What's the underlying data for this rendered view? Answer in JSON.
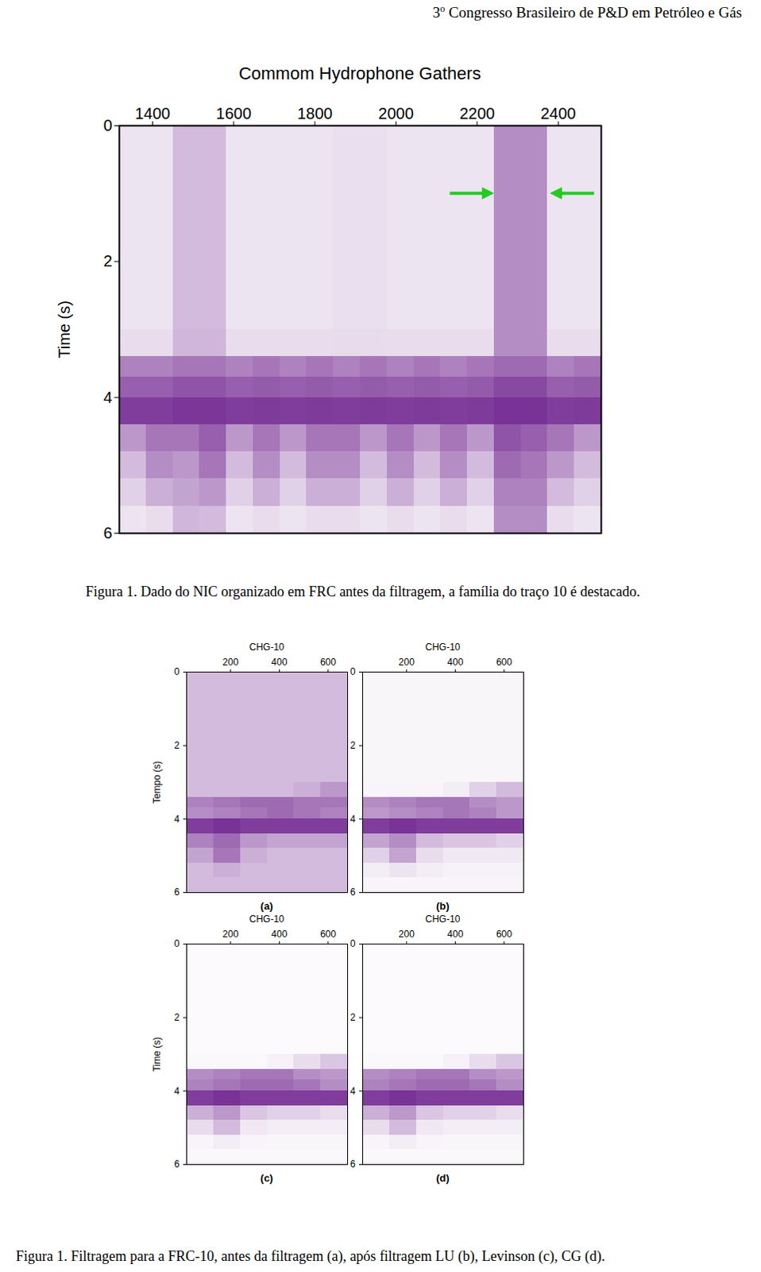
{
  "header": {
    "number": "3",
    "sup": "o",
    "text": " Congresso Brasileiro de P&D em Petróleo e Gás"
  },
  "chart_data": [
    {
      "type": "heatmap",
      "title": "Commom Hydrophone Gathers",
      "ylabel": "Time (s)",
      "xlim": [
        1318,
        2506
      ],
      "xticks": [
        1400,
        1600,
        1800,
        2000,
        2200,
        2400
      ],
      "ylim": [
        0,
        6
      ],
      "yticks": [
        0,
        2,
        4,
        6
      ],
      "zlim": [
        0,
        1
      ],
      "color": "#6a1b8a",
      "x_edges": [
        1318,
        1384,
        1450,
        1516,
        1582,
        1648,
        1714,
        1780,
        1846,
        1912,
        1978,
        2044,
        2110,
        2176,
        2242,
        2308,
        2374,
        2440,
        2506
      ],
      "y_edges": [
        0,
        1,
        2,
        3,
        3.4,
        3.7,
        4.0,
        4.4,
        4.8,
        5.2,
        5.6,
        6
      ],
      "values": [
        [
          0.12,
          0.12,
          0.3,
          0.3,
          0.12,
          0.12,
          0.12,
          0.12,
          0.14,
          0.14,
          0.12,
          0.12,
          0.12,
          0.12,
          0.5,
          0.5,
          0.12,
          0.12
        ],
        [
          0.12,
          0.12,
          0.3,
          0.3,
          0.12,
          0.12,
          0.12,
          0.12,
          0.14,
          0.14,
          0.12,
          0.12,
          0.12,
          0.12,
          0.5,
          0.5,
          0.12,
          0.12
        ],
        [
          0.12,
          0.12,
          0.3,
          0.3,
          0.12,
          0.12,
          0.12,
          0.12,
          0.14,
          0.14,
          0.12,
          0.12,
          0.12,
          0.12,
          0.5,
          0.5,
          0.12,
          0.12
        ],
        [
          0.15,
          0.15,
          0.32,
          0.32,
          0.15,
          0.15,
          0.15,
          0.15,
          0.16,
          0.16,
          0.15,
          0.15,
          0.15,
          0.15,
          0.5,
          0.5,
          0.15,
          0.15
        ],
        [
          0.55,
          0.55,
          0.6,
          0.6,
          0.55,
          0.6,
          0.55,
          0.6,
          0.55,
          0.6,
          0.55,
          0.6,
          0.55,
          0.6,
          0.65,
          0.65,
          0.55,
          0.6
        ],
        [
          0.7,
          0.7,
          0.75,
          0.75,
          0.7,
          0.72,
          0.7,
          0.72,
          0.7,
          0.72,
          0.7,
          0.72,
          0.7,
          0.72,
          0.8,
          0.8,
          0.7,
          0.72
        ],
        [
          0.85,
          0.85,
          0.88,
          0.88,
          0.85,
          0.86,
          0.85,
          0.86,
          0.85,
          0.86,
          0.85,
          0.86,
          0.85,
          0.86,
          0.9,
          0.9,
          0.85,
          0.86
        ],
        [
          0.45,
          0.6,
          0.6,
          0.7,
          0.45,
          0.6,
          0.45,
          0.6,
          0.6,
          0.45,
          0.6,
          0.45,
          0.6,
          0.45,
          0.75,
          0.7,
          0.6,
          0.45
        ],
        [
          0.3,
          0.5,
          0.45,
          0.6,
          0.3,
          0.5,
          0.3,
          0.5,
          0.5,
          0.3,
          0.5,
          0.3,
          0.5,
          0.3,
          0.65,
          0.6,
          0.45,
          0.3
        ],
        [
          0.2,
          0.35,
          0.4,
          0.45,
          0.2,
          0.35,
          0.2,
          0.35,
          0.35,
          0.2,
          0.35,
          0.2,
          0.35,
          0.2,
          0.55,
          0.55,
          0.3,
          0.2
        ],
        [
          0.12,
          0.15,
          0.32,
          0.3,
          0.12,
          0.15,
          0.12,
          0.15,
          0.15,
          0.12,
          0.15,
          0.12,
          0.15,
          0.12,
          0.5,
          0.5,
          0.15,
          0.12
        ]
      ],
      "highlight": {
        "x0": 2247,
        "x1": 2376,
        "y": 1.0,
        "color": "#22cc22"
      }
    },
    {
      "type": "heatmap",
      "title": "CHG-10",
      "ylabel": "Tempo (s)",
      "subtitle": "(a)",
      "xlim": [
        20,
        680
      ],
      "xticks": [
        200,
        400,
        600
      ],
      "ylim": [
        0,
        6
      ],
      "yticks": [
        0,
        2,
        4,
        6
      ],
      "zlim": [
        0,
        1
      ],
      "color": "#6a1b8a",
      "x_edges": [
        20,
        130,
        240,
        350,
        460,
        570,
        680
      ],
      "y_edges": [
        0,
        1,
        2,
        3,
        3.4,
        3.7,
        4.0,
        4.4,
        4.8,
        5.2,
        5.6,
        6
      ],
      "values": [
        [
          0.3,
          0.3,
          0.3,
          0.3,
          0.3,
          0.3
        ],
        [
          0.3,
          0.3,
          0.3,
          0.3,
          0.3,
          0.3
        ],
        [
          0.3,
          0.3,
          0.3,
          0.3,
          0.3,
          0.3
        ],
        [
          0.3,
          0.3,
          0.3,
          0.3,
          0.35,
          0.45
        ],
        [
          0.55,
          0.6,
          0.65,
          0.65,
          0.6,
          0.6
        ],
        [
          0.5,
          0.55,
          0.6,
          0.65,
          0.6,
          0.55
        ],
        [
          0.85,
          0.9,
          0.85,
          0.85,
          0.85,
          0.85
        ],
        [
          0.55,
          0.65,
          0.45,
          0.4,
          0.4,
          0.4
        ],
        [
          0.4,
          0.6,
          0.35,
          0.3,
          0.3,
          0.3
        ],
        [
          0.3,
          0.35,
          0.3,
          0.3,
          0.3,
          0.3
        ],
        [
          0.3,
          0.3,
          0.3,
          0.3,
          0.3,
          0.3
        ]
      ]
    },
    {
      "type": "heatmap",
      "title": "CHG-10",
      "subtitle": "(b)",
      "xlim": [
        20,
        680
      ],
      "xticks": [
        200,
        400,
        600
      ],
      "ylim": [
        0,
        6
      ],
      "yticks": [
        0,
        2,
        4,
        6
      ],
      "zlim": [
        0,
        1
      ],
      "color": "#6a1b8a",
      "x_edges": [
        20,
        130,
        240,
        350,
        460,
        570,
        680
      ],
      "y_edges": [
        0,
        1,
        2,
        3,
        3.4,
        3.7,
        4.0,
        4.4,
        4.8,
        5.2,
        5.6,
        6
      ],
      "values": [
        [
          0.04,
          0.04,
          0.04,
          0.04,
          0.04,
          0.04
        ],
        [
          0.04,
          0.04,
          0.04,
          0.04,
          0.04,
          0.04
        ],
        [
          0.04,
          0.04,
          0.04,
          0.04,
          0.04,
          0.04
        ],
        [
          0.05,
          0.05,
          0.05,
          0.08,
          0.2,
          0.3
        ],
        [
          0.5,
          0.55,
          0.6,
          0.6,
          0.5,
          0.45
        ],
        [
          0.45,
          0.5,
          0.55,
          0.6,
          0.55,
          0.45
        ],
        [
          0.85,
          0.9,
          0.85,
          0.85,
          0.85,
          0.85
        ],
        [
          0.4,
          0.5,
          0.3,
          0.25,
          0.25,
          0.2
        ],
        [
          0.2,
          0.4,
          0.15,
          0.1,
          0.1,
          0.1
        ],
        [
          0.08,
          0.12,
          0.08,
          0.06,
          0.06,
          0.06
        ],
        [
          0.05,
          0.05,
          0.05,
          0.05,
          0.05,
          0.05
        ]
      ]
    },
    {
      "type": "heatmap",
      "title": "CHG-10",
      "ylabel": "Time (s)",
      "subtitle": "(c)",
      "xlim": [
        20,
        680
      ],
      "xticks": [
        200,
        400,
        600
      ],
      "ylim": [
        0,
        6
      ],
      "yticks": [
        0,
        2,
        4,
        6
      ],
      "zlim": [
        0,
        1
      ],
      "color": "#6a1b8a",
      "x_edges": [
        20,
        130,
        240,
        350,
        460,
        570,
        680
      ],
      "y_edges": [
        0,
        1,
        2,
        3,
        3.4,
        3.7,
        4.0,
        4.4,
        4.8,
        5.2,
        5.6,
        6
      ],
      "values": [
        [
          0.02,
          0.02,
          0.02,
          0.02,
          0.02,
          0.02
        ],
        [
          0.02,
          0.02,
          0.02,
          0.02,
          0.02,
          0.02
        ],
        [
          0.02,
          0.02,
          0.02,
          0.02,
          0.02,
          0.02
        ],
        [
          0.03,
          0.03,
          0.03,
          0.06,
          0.15,
          0.25
        ],
        [
          0.5,
          0.55,
          0.6,
          0.6,
          0.5,
          0.45
        ],
        [
          0.55,
          0.6,
          0.65,
          0.65,
          0.6,
          0.5
        ],
        [
          0.85,
          0.9,
          0.85,
          0.85,
          0.85,
          0.85
        ],
        [
          0.35,
          0.45,
          0.25,
          0.2,
          0.2,
          0.15
        ],
        [
          0.15,
          0.3,
          0.1,
          0.08,
          0.08,
          0.08
        ],
        [
          0.05,
          0.08,
          0.05,
          0.04,
          0.04,
          0.04
        ],
        [
          0.03,
          0.03,
          0.03,
          0.03,
          0.03,
          0.03
        ]
      ]
    },
    {
      "type": "heatmap",
      "title": "CHG-10",
      "subtitle": "(d)",
      "xlim": [
        20,
        680
      ],
      "xticks": [
        200,
        400,
        600
      ],
      "ylim": [
        0,
        6
      ],
      "yticks": [
        0,
        2,
        4,
        6
      ],
      "zlim": [
        0,
        1
      ],
      "color": "#6a1b8a",
      "x_edges": [
        20,
        130,
        240,
        350,
        460,
        570,
        680
      ],
      "y_edges": [
        0,
        1,
        2,
        3,
        3.4,
        3.7,
        4.0,
        4.4,
        4.8,
        5.2,
        5.6,
        6
      ],
      "values": [
        [
          0.02,
          0.02,
          0.02,
          0.02,
          0.02,
          0.02
        ],
        [
          0.02,
          0.02,
          0.02,
          0.02,
          0.02,
          0.02
        ],
        [
          0.02,
          0.02,
          0.02,
          0.02,
          0.02,
          0.02
        ],
        [
          0.03,
          0.03,
          0.03,
          0.06,
          0.15,
          0.25
        ],
        [
          0.5,
          0.55,
          0.6,
          0.6,
          0.5,
          0.45
        ],
        [
          0.55,
          0.6,
          0.65,
          0.65,
          0.6,
          0.5
        ],
        [
          0.85,
          0.9,
          0.85,
          0.85,
          0.85,
          0.85
        ],
        [
          0.35,
          0.45,
          0.25,
          0.2,
          0.2,
          0.15
        ],
        [
          0.15,
          0.3,
          0.1,
          0.08,
          0.08,
          0.08
        ],
        [
          0.05,
          0.08,
          0.05,
          0.04,
          0.04,
          0.04
        ],
        [
          0.03,
          0.03,
          0.03,
          0.03,
          0.03,
          0.03
        ]
      ]
    }
  ],
  "captions": [
    "Figura 1. Dado do NIC organizado em FRC antes da filtragem, a família do traço 10 é destacado.",
    "Figura 1. Filtragem para a FRC-10, antes da filtragem (a), após filtragem LU (b), Levinson (c), CG (d)."
  ]
}
